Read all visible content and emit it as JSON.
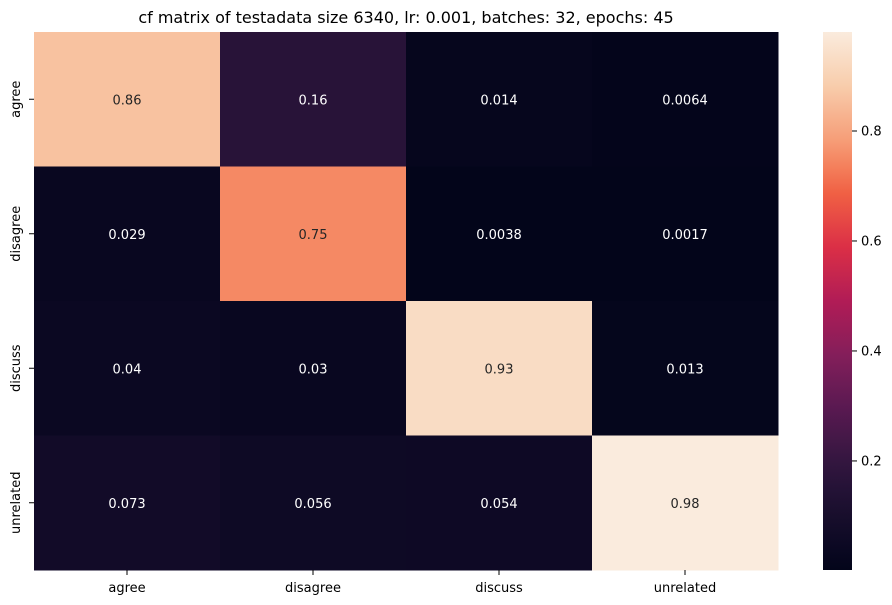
{
  "chart_data": {
    "type": "heatmap",
    "title": "cf matrix of testadata size 6340, lr: 0.001, batches: 32, epochs: 45",
    "xlabel": "",
    "ylabel": "",
    "x_categories": [
      "agree",
      "disagree",
      "discuss",
      "unrelated"
    ],
    "y_categories": [
      "agree",
      "disagree",
      "discuss",
      "unrelated"
    ],
    "values": [
      [
        0.86,
        0.16,
        0.014,
        0.0064
      ],
      [
        0.029,
        0.75,
        0.0038,
        0.0017
      ],
      [
        0.04,
        0.03,
        0.93,
        0.013
      ],
      [
        0.073,
        0.056,
        0.054,
        0.98
      ]
    ],
    "cell_labels": [
      [
        "0.86",
        "0.16",
        "0.014",
        "0.0064"
      ],
      [
        "0.029",
        "0.75",
        "0.0038",
        "0.0017"
      ],
      [
        "0.04",
        "0.03",
        "0.93",
        "0.013"
      ],
      [
        "0.073",
        "0.056",
        "0.054",
        "0.98"
      ]
    ],
    "colorbar": {
      "colormap": "rocket",
      "vmin": 0.0017,
      "vmax": 0.98,
      "ticks": [
        0.2,
        0.4,
        0.6,
        0.8
      ],
      "tick_labels": [
        "0.2",
        "0.4",
        "0.6",
        "0.8"
      ]
    },
    "grid": false,
    "annotation_colors": {
      "on_dark": "#ffffff",
      "on_light": "#262626"
    }
  }
}
